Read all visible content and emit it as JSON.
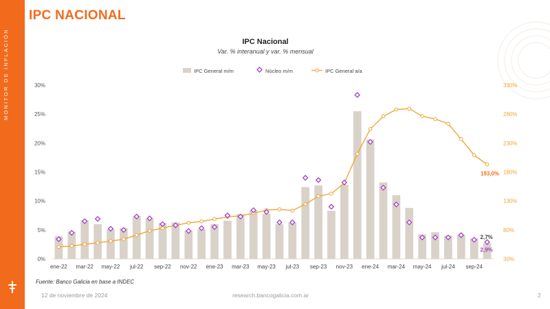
{
  "page": {
    "title": "IPC NACIONAL",
    "sidebar_label": "MONITOR DE INFLACIÓN",
    "source": "Fuente: Banco Galicia en base a INDEC",
    "date": "12 de noviembre de 2024",
    "url": "research.bancogalicia.com.ar",
    "page_number": "2"
  },
  "colors": {
    "accent": "#f26b1d",
    "bar": "#d9d2c9",
    "nucleo": "#a23fc8",
    "line": "#f0a534"
  },
  "chart_data": {
    "type": "bar",
    "title": "IPC Nacional",
    "subtitle": "Var. % interanual y var. % mensual",
    "categories": [
      "ene-22",
      "feb-22",
      "mar-22",
      "abr-22",
      "may-22",
      "jun-22",
      "jul-22",
      "ago-22",
      "sep-22",
      "oct-22",
      "nov-22",
      "dic-22",
      "ene-23",
      "feb-23",
      "mar-23",
      "abr-23",
      "may-23",
      "jun-23",
      "jul-23",
      "ago-23",
      "sep-23",
      "oct-23",
      "nov-23",
      "dic-23",
      "ene-24",
      "feb-24",
      "mar-24",
      "abr-24",
      "may-24",
      "jun-24",
      "jul-24",
      "ago-24",
      "sep-24",
      "oct-24"
    ],
    "x_tick_labels": [
      "ene-22",
      "mar-22",
      "may-22",
      "jul-22",
      "sep-22",
      "nov-22",
      "ene-23",
      "mar-23",
      "may-23",
      "jul-23",
      "sep-23",
      "nov-23",
      "ene-24",
      "mar-24",
      "may-24",
      "jul-24",
      "sep-24"
    ],
    "y_left": {
      "min": 0,
      "max": 30,
      "ticks": [
        "0%",
        "5%",
        "10%",
        "15%",
        "20%",
        "25%",
        "30%"
      ]
    },
    "y_right": {
      "min": 30,
      "max": 330,
      "ticks": [
        "30%",
        "80%",
        "130%",
        "180%",
        "230%",
        "280%",
        "330%"
      ]
    },
    "legend": [
      "IPC General m/m",
      "Núcleo m/m",
      "IPC General a/a"
    ],
    "legend_position": "top",
    "grid": false,
    "series": [
      {
        "name": "IPC General m/m",
        "type": "bar",
        "axis": "left",
        "values": [
          3.9,
          4.7,
          6.7,
          6.0,
          5.1,
          5.3,
          7.4,
          7.0,
          6.2,
          6.3,
          4.9,
          5.1,
          6.0,
          6.6,
          7.7,
          8.4,
          7.8,
          6.0,
          6.3,
          12.4,
          12.7,
          8.3,
          12.8,
          25.5,
          20.6,
          13.2,
          11.0,
          8.8,
          4.2,
          4.6,
          4.0,
          4.2,
          3.5,
          2.7
        ]
      },
      {
        "name": "Núcleo m/m",
        "type": "scatter",
        "axis": "left",
        "values": [
          3.4,
          4.5,
          6.5,
          6.9,
          5.2,
          5.0,
          7.3,
          7.0,
          6.0,
          5.8,
          4.8,
          5.3,
          5.5,
          7.5,
          7.3,
          8.4,
          8.1,
          6.3,
          6.3,
          14.0,
          13.6,
          9.0,
          13.2,
          28.3,
          20.2,
          12.3,
          9.4,
          6.3,
          3.7,
          3.7,
          3.7,
          4.1,
          3.3,
          2.9
        ]
      },
      {
        "name": "IPC General a/a",
        "type": "line",
        "axis": "right",
        "values": [
          50.7,
          52.3,
          55.1,
          58.0,
          60.7,
          64.0,
          71.0,
          78.5,
          83.0,
          88.0,
          92.4,
          94.8,
          98.8,
          102.5,
          104.3,
          108.8,
          114.2,
          115.6,
          113.4,
          124.4,
          138.3,
          142.7,
          160.9,
          211.4,
          254.2,
          276.2,
          287.9,
          289.4,
          276.4,
          271.5,
          263.4,
          236.7,
          209.0,
          193.0
        ]
      }
    ],
    "annotations": {
      "last_bar_label": "2,7%",
      "last_nucleo_label": "2,9%",
      "last_line_label": "193,0%"
    }
  }
}
